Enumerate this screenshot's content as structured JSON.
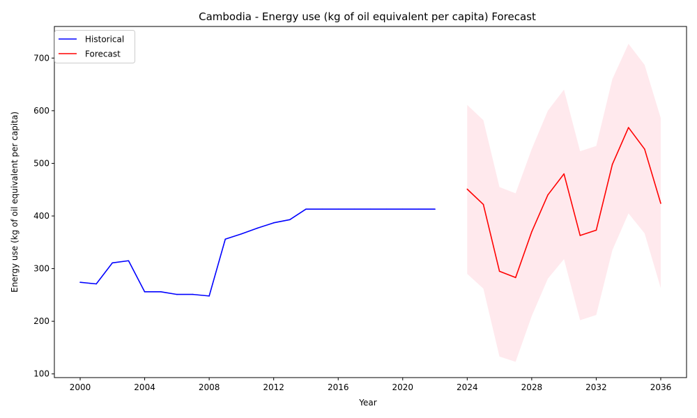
{
  "chart_data": {
    "type": "line",
    "title": "Cambodia - Energy use (kg of oil equivalent per capita) Forecast",
    "xlabel": "Year",
    "ylabel": "Energy use (kg of oil equivalent per capita)",
    "xlim": [
      1998.4,
      2037.6
    ],
    "ylim": [
      93,
      760
    ],
    "xticks": [
      2000,
      2004,
      2008,
      2012,
      2016,
      2020,
      2024,
      2028,
      2032,
      2036
    ],
    "yticks": [
      100,
      200,
      300,
      400,
      500,
      600,
      700
    ],
    "grid": false,
    "legend": "top-left",
    "series": [
      {
        "name": "Historical",
        "color": "#0000ff",
        "x": [
          2000,
          2001,
          2002,
          2003,
          2004,
          2005,
          2006,
          2007,
          2008,
          2009,
          2010,
          2011,
          2012,
          2013,
          2014,
          2015,
          2016,
          2017,
          2018,
          2019,
          2020,
          2021,
          2022
        ],
        "y": [
          274,
          271,
          311,
          315,
          256,
          256,
          251,
          251,
          248,
          356,
          366,
          377,
          387,
          393,
          413,
          413,
          413,
          413,
          413,
          413,
          413,
          413,
          413
        ]
      },
      {
        "name": "Forecast",
        "color": "#ff0000",
        "x": [
          2024,
          2025,
          2026,
          2027,
          2028,
          2029,
          2030,
          2031,
          2032,
          2033,
          2034,
          2035,
          2036
        ],
        "y": [
          451,
          422,
          295,
          283,
          370,
          440,
          480,
          363,
          373,
          498,
          568,
          527,
          424
        ],
        "band_color": "#ffc0cb",
        "lower": [
          290,
          262,
          133,
          123,
          210,
          281,
          318,
          202,
          212,
          335,
          405,
          367,
          263
        ],
        "upper": [
          611,
          582,
          455,
          443,
          527,
          600,
          640,
          523,
          533,
          660,
          727,
          687,
          586
        ]
      }
    ]
  }
}
